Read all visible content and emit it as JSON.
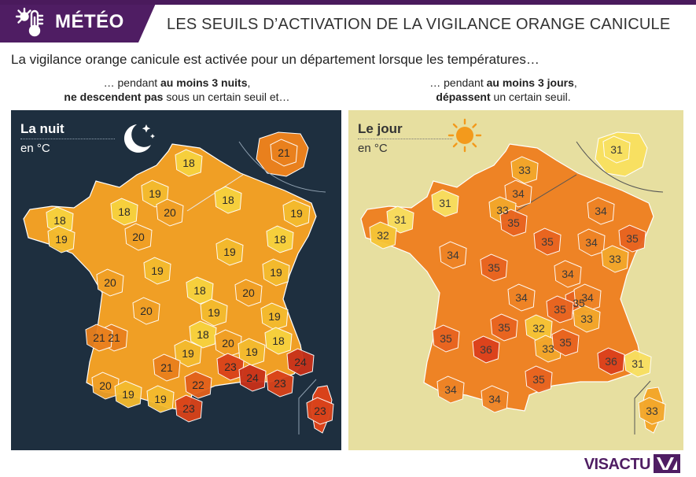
{
  "header": {
    "tag": "MÉTÉO",
    "title": "LES SEUILS D’ACTIVATION DE LA VIGILANCE ORANGE CANICULE",
    "icon": "thermometer-sun-icon"
  },
  "intro": "La vigilance orange canicule est activée pour un département lorsque les températures…",
  "conditions": {
    "night": {
      "line1_pre": "… pendant ",
      "line1_bold": "au moins 3 nuits",
      "line1_post": ",",
      "line2_bold": "ne descendent pas",
      "line2_post": " sous un certain seuil et…"
    },
    "day": {
      "line1_pre": "… pendant ",
      "line1_bold": "au moins 3 jours",
      "line1_post": ",",
      "line2_bold": "dépassent",
      "line2_post": " un certain seuil."
    }
  },
  "night_map": {
    "title": "La nuit",
    "unit": "en °C",
    "icon": "moon-stars-icon",
    "thresholds": [
      "21",
      "18",
      "19",
      "18",
      "20",
      "18",
      "19",
      "18",
      "19",
      "20",
      "19",
      "18",
      "19",
      "20",
      "19",
      "18",
      "20",
      "20",
      "19",
      "19",
      "21",
      "18",
      "18",
      "20",
      "21",
      "19",
      "21",
      "23",
      "19",
      "24",
      "20",
      "19",
      "22",
      "24",
      "23",
      "19",
      "23",
      "23"
    ]
  },
  "day_map": {
    "title": "Le jour",
    "unit": "en °C",
    "icon": "sun-icon",
    "thresholds": [
      "31",
      "33",
      "34",
      "31",
      "33",
      "35",
      "34",
      "31",
      "32",
      "34",
      "35",
      "35",
      "34",
      "33",
      "35",
      "34",
      "35",
      "34",
      "35",
      "34",
      "35",
      "32",
      "35",
      "33",
      "33",
      "35",
      "36",
      "36",
      "31",
      "35",
      "34",
      "34",
      "33"
    ]
  },
  "brand": "VISACTU",
  "colors": {
    "purple": "#4f1d63",
    "night_bg": "#1e2f3f",
    "day_bg": "#e7dfa0",
    "t18": "#f7d23e",
    "t19": "#f4bb2e",
    "t20": "#f09f25",
    "t21": "#e9801d",
    "t22": "#e2601b",
    "t23": "#d9421a",
    "t24": "#c8311a",
    "t31": "#f8e061",
    "t32": "#f6c536",
    "t33": "#f3a72b",
    "t34": "#ee8325",
    "t35": "#e86420",
    "t36": "#dc401c"
  }
}
